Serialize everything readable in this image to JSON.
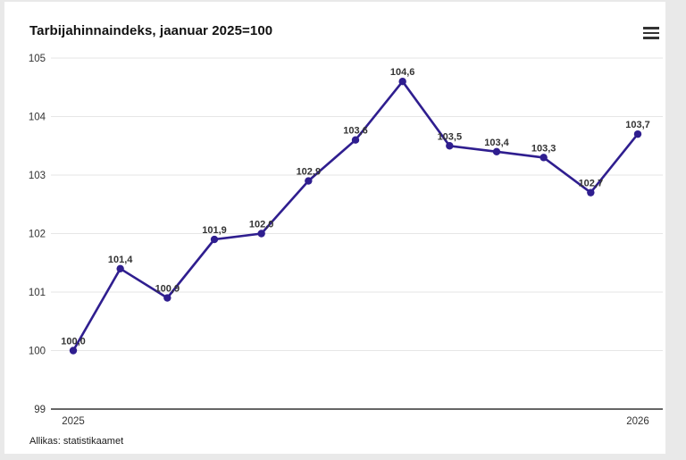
{
  "header": {
    "title": "Tarbijahinnaindeks, jaanuar 2025=100",
    "menu_icon": "hamburger-icon"
  },
  "footer": {
    "source": "Allikas: statistikaamet"
  },
  "colors": {
    "line": "#2f1e8f",
    "marker": "#2f1e8f",
    "grid": "#e6e6e6",
    "axis_line": "#333333",
    "tick_label": "#333333",
    "data_label": "#333333",
    "card_background": "#ffffff",
    "page_background": "#e9e9e9"
  },
  "chart_data": {
    "type": "line",
    "title": "Tarbijahinnaindeks, jaanuar 2025=100",
    "series_name": "Tarbijahinnaindeks",
    "values": [
      100.0,
      101.4,
      100.9,
      101.9,
      102.0,
      102.9,
      103.6,
      104.6,
      103.5,
      103.4,
      103.3,
      102.7,
      103.7
    ],
    "point_labels": [
      "100,0",
      "101,4",
      "100,9",
      "101,9",
      "102,0",
      "102,9",
      "103,6",
      "104,6",
      "103,5",
      "103,4",
      "103,3",
      "102,7",
      "103,7"
    ],
    "xticklabels": [
      "2025",
      "2026"
    ],
    "xtick_point_indices": [
      0,
      12
    ],
    "yticks": [
      99,
      100,
      101,
      102,
      103,
      104,
      105
    ],
    "ylim": [
      99,
      105
    ],
    "grid": true,
    "legend": false,
    "source": "Allikas: statistikaamet"
  }
}
